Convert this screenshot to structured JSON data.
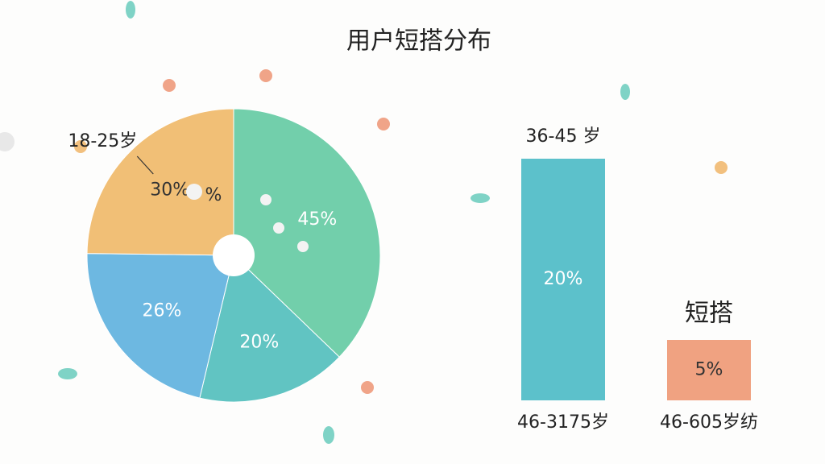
{
  "chart_data": [
    {
      "type": "pie",
      "title": "用户短搭分布",
      "categories": [
        null,
        null,
        null,
        "18-25岁"
      ],
      "values": [
        45,
        20,
        26,
        30
      ],
      "value_labels": [
        "45%",
        "20%",
        "26%",
        "30%"
      ],
      "colors": [
        "#72cfab",
        "#61c4c2",
        "#6db8e1",
        "#f1bf76"
      ],
      "annotation": "%"
    },
    {
      "type": "bar",
      "categories": [
        "46-3175岁",
        "46-605岁纺"
      ],
      "values": [
        20,
        5
      ],
      "value_labels": [
        "20%",
        "5%"
      ],
      "annotations": [
        "36-45 岁",
        "短搭"
      ],
      "colors": [
        "#5cc1cb",
        "#f0a281"
      ]
    }
  ]
}
